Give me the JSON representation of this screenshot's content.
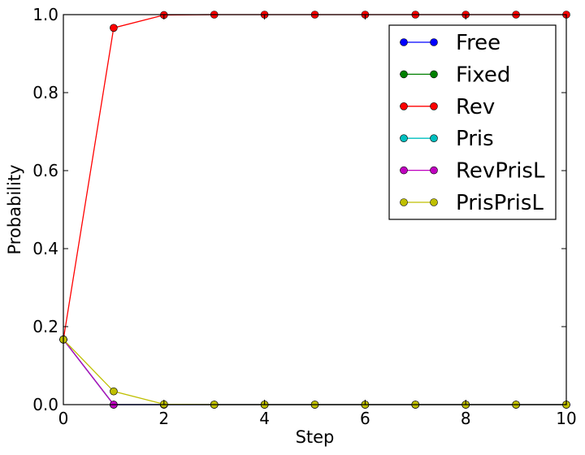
{
  "chart_data": {
    "type": "line",
    "title": "",
    "xlabel": "Step",
    "ylabel": "Probability",
    "xlim": [
      0,
      10
    ],
    "ylim": [
      0,
      1
    ],
    "xticks": [
      0,
      2,
      4,
      6,
      8,
      10
    ],
    "yticks": [
      0.0,
      0.2,
      0.4,
      0.6,
      0.8,
      1.0
    ],
    "xtick_labels": [
      "0",
      "2",
      "4",
      "6",
      "8",
      "10"
    ],
    "ytick_labels": [
      "0.0",
      "0.2",
      "0.4",
      "0.6",
      "0.8",
      "1.0"
    ],
    "grid": false,
    "legend_position": "top-right",
    "x": [
      0,
      1,
      2,
      3,
      4,
      5,
      6,
      7,
      8,
      9,
      10
    ],
    "series": [
      {
        "name": "Free",
        "color": "#0000ff",
        "values": [
          0.167,
          0,
          0,
          0,
          0,
          0,
          0,
          0,
          0,
          0,
          0
        ]
      },
      {
        "name": "Fixed",
        "color": "#008000",
        "values": [
          0.167,
          0,
          0,
          0,
          0,
          0,
          0,
          0,
          0,
          0,
          0
        ]
      },
      {
        "name": "Rev",
        "color": "#ff0000",
        "values": [
          0.167,
          0.966,
          0.999,
          1.0,
          1.0,
          1.0,
          1.0,
          1.0,
          1.0,
          1.0,
          1.0
        ]
      },
      {
        "name": "Pris",
        "color": "#00bfbf",
        "values": [
          0.167,
          0,
          0,
          0,
          0,
          0,
          0,
          0,
          0,
          0,
          0
        ]
      },
      {
        "name": "RevPrisL",
        "color": "#bf00bf",
        "values": [
          0.167,
          0,
          0,
          0,
          0,
          0,
          0,
          0,
          0,
          0,
          0
        ]
      },
      {
        "name": "PrisPrisL",
        "color": "#bfbf00",
        "values": [
          0.167,
          0.034,
          0.001,
          0,
          0,
          0,
          0,
          0,
          0,
          0,
          0
        ]
      }
    ]
  }
}
